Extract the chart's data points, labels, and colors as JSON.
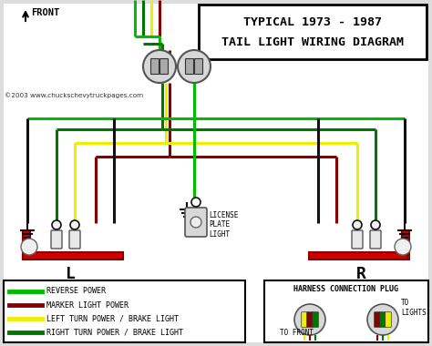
{
  "title_line1": "TYPICAL 1973 - 1987",
  "title_line2": "TAIL LIGHT WIRING DIAGRAM",
  "copyright": "©2003 www.chuckschevytruckpages.com",
  "front_label": "FRONT",
  "left_label": "L",
  "right_label": "R",
  "license_label": "LICENSE\nPLATE\nLIGHT",
  "bg_color": "#ffffff",
  "G": "#00bb00",
  "DR": "#880000",
  "Y": "#eeee00",
  "DG": "#007700",
  "BK": "#111111",
  "WT": "#ffffff",
  "legend_items": [
    {
      "color": "#00bb00",
      "label": "REVERSE POWER"
    },
    {
      "color": "#880000",
      "label": "MARKER LIGHT POWER"
    },
    {
      "color": "#eeee00",
      "label": "LEFT TURN POWER / BRAKE LIGHT"
    },
    {
      "color": "#007700",
      "label": "RIGHT TURN POWER / BRAKE LIGHT"
    }
  ]
}
